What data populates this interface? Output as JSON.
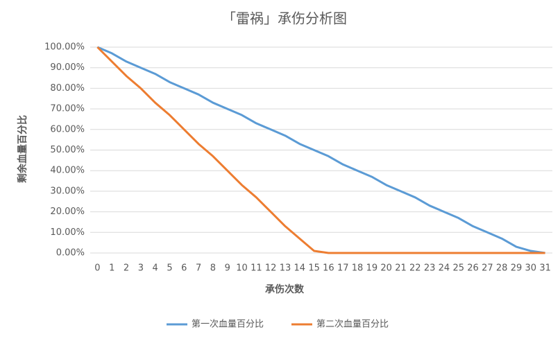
{
  "chart_data": {
    "type": "line",
    "title": "「雷祸」承伤分析图",
    "x_label": "承伤次数",
    "y_label": "剩余血量百分比",
    "categories": [
      0,
      1,
      2,
      3,
      4,
      5,
      6,
      7,
      8,
      9,
      10,
      11,
      12,
      13,
      14,
      15,
      16,
      17,
      18,
      19,
      20,
      21,
      22,
      23,
      24,
      25,
      26,
      27,
      28,
      29,
      30,
      31
    ],
    "series": [
      {
        "name": "第一次血量百分比",
        "color": "#5b9bd5",
        "values": [
          100,
          97,
          93,
          90,
          87,
          83,
          80,
          77,
          73,
          70,
          67,
          63,
          60,
          57,
          53,
          50,
          47,
          43,
          40,
          37,
          33,
          30,
          27,
          23,
          20,
          17,
          13,
          10,
          7,
          3,
          1,
          0
        ]
      },
      {
        "name": "第二次血量百分比",
        "color": "#ed7d31",
        "values": [
          100,
          93,
          86,
          80,
          73,
          67,
          60,
          53,
          47,
          40,
          33,
          27,
          20,
          13,
          7,
          1,
          0,
          0,
          0,
          0,
          0,
          0,
          0,
          0,
          0,
          0,
          0,
          0,
          0,
          0,
          0,
          0
        ]
      }
    ],
    "ylim": [
      0,
      100
    ],
    "yticks": [
      {
        "value": 0,
        "label": "0.00%"
      },
      {
        "value": 10,
        "label": "10.00%"
      },
      {
        "value": 20,
        "label": "20.00%"
      },
      {
        "value": 30,
        "label": "30.00%"
      },
      {
        "value": 40,
        "label": "40.00%"
      },
      {
        "value": 50,
        "label": "50.00%"
      },
      {
        "value": 60,
        "label": "60.00%"
      },
      {
        "value": 70,
        "label": "70.00%"
      },
      {
        "value": 80,
        "label": "80.00%"
      },
      {
        "value": 90,
        "label": "90.00%"
      },
      {
        "value": 100,
        "label": "100.00%"
      }
    ],
    "grid": true,
    "legend": "bottom"
  }
}
